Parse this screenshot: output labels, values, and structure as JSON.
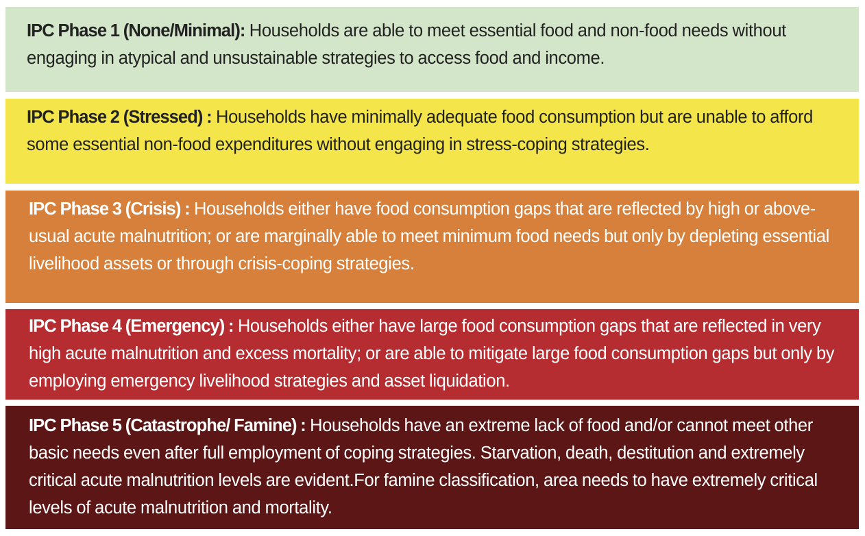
{
  "colors": {
    "phase1": "#d3e6c9",
    "phase2": "#f3e54a",
    "phase3": "#d6803b",
    "phase4": "#b52d31",
    "phase5": "#5c1615"
  },
  "phases": [
    {
      "title": "IPC Phase 1 (None/Minimal):",
      "description": " Households are able to meet essential food and non-food needs without engaging in atypical and unsustainable strategies to access food and income."
    },
    {
      "title": "IPC Phase 2 (Stressed) :",
      "description": " Households have minimally adequate food consumption but are unable to afford some essential non-food expenditures without engaging in stress-coping strategies."
    },
    {
      "title": "IPC Phase 3 (Crisis) :",
      "description": " Households either have food consumption gaps that are reflected by high or above-usual acute malnutrition; or are marginally able to meet minimum food needs but only by depleting essential livelihood assets or through crisis-coping strategies."
    },
    {
      "title": "IPC Phase 4 (Emergency) :",
      "description": " Households either have large food consumption gaps that are reflected in very high acute malnutrition and excess mortality; or are able to mitigate large food consumption gaps but only by employing emergency livelihood strategies and asset liquidation."
    },
    {
      "title": "IPC Phase 5 (Catastrophe/ Famine) :",
      "description": " Households have an extreme lack of food and/or cannot meet other basic needs even after full employment of coping strategies. Starvation, death, destitution and extremely critical acute malnutrition levels are evident.For famine classification, area needs to have extremely critical levels of acute malnutrition and mortality."
    }
  ]
}
